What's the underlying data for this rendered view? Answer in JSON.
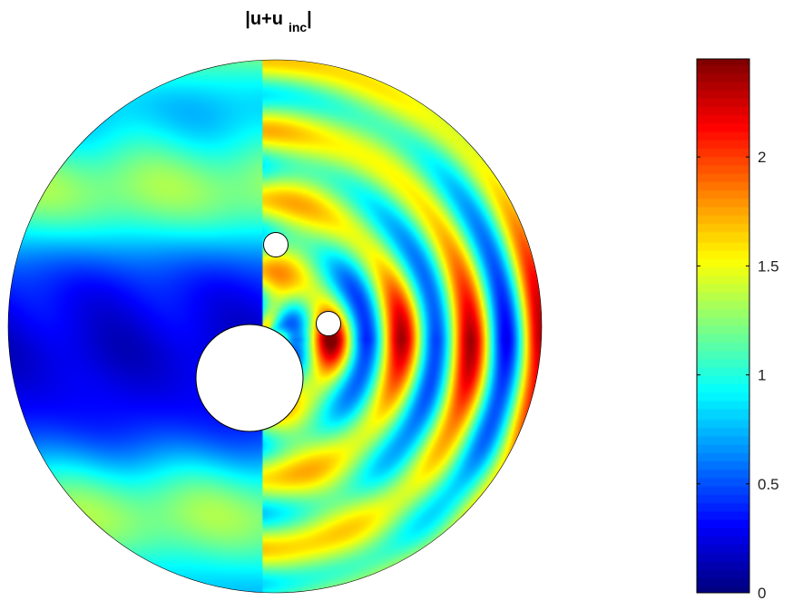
{
  "chart_data": {
    "type": "heatmap",
    "title": {
      "prefix": "|u+u",
      "subscript": "inc",
      "suffix": "|"
    },
    "domain": {
      "shape": "annulus-disk",
      "outer_radius": 1.0,
      "holes": [
        {
          "label": "large obstacle",
          "cx": -0.1,
          "cy": -0.18,
          "r": 0.2
        },
        {
          "label": "small obstacle 1",
          "cx": -0.0,
          "cy": 0.33,
          "r": 0.045
        },
        {
          "label": "small obstacle 2",
          "cx": 0.2,
          "cy": 0.0,
          "r": 0.045
        }
      ]
    },
    "colormap": "jet",
    "colorbar": {
      "min": 0,
      "max": 2.45,
      "ticks": [
        0,
        0.5,
        1,
        1.5,
        2
      ],
      "tick_labels": [
        "0",
        "0.5",
        "1",
        "1.5",
        "2"
      ]
    },
    "field_description": "magnitude of total field; shadow (low) region left of obstacles, wavefronts with high peaks to the right"
  }
}
